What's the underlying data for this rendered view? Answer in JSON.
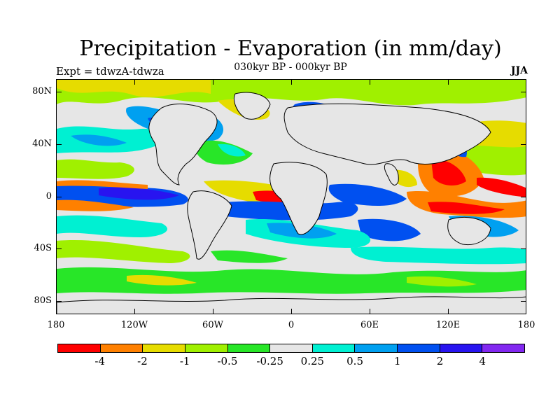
{
  "title": "Precipitation - Evaporation (in mm/day)",
  "subtitle": "030kyr BP - 000kyr BP",
  "expt": "Expt = tdwzA-tdwza",
  "season": "JJA",
  "y_axis_labels": [
    "80N",
    "40N",
    "0",
    "40S",
    "80S"
  ],
  "x_axis_labels": [
    "180",
    "120W",
    "60W",
    "0",
    "60E",
    "120E",
    "180"
  ],
  "colorbar": {
    "colors": [
      "#ff0000",
      "#ff8000",
      "#e6dc00",
      "#a0f000",
      "#28e628",
      "#e6e6e6",
      "#00f0d2",
      "#00a0f0",
      "#0050f0",
      "#2814f0",
      "#8228f0"
    ],
    "labels": [
      "-4",
      "-2",
      "-1",
      "-0.5",
      "-0.25",
      "0.25",
      "0.5",
      "1",
      "2",
      "4"
    ]
  },
  "map": {
    "ocean_color": "#e6e6e6",
    "coastline_color": "#000000"
  }
}
